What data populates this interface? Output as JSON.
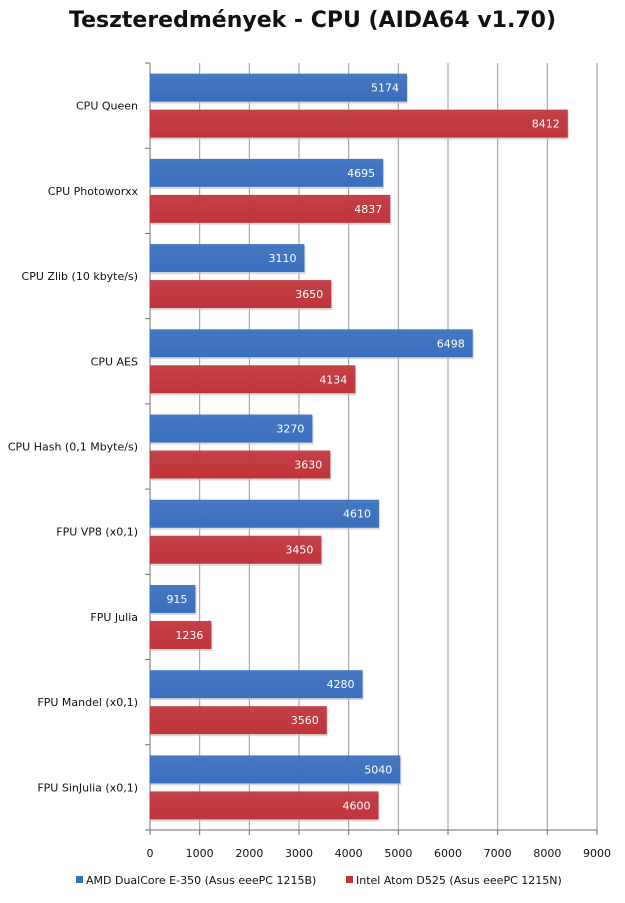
{
  "chart_data": {
    "type": "bar",
    "orientation": "horizontal",
    "title": "Teszteredmények - CPU (AIDA64 v1.70)",
    "xlabel": "",
    "ylabel": "",
    "categories": [
      "CPU Queen",
      "CPU Photoworxx",
      "CPU Zlib (10 kbyte/s)",
      "CPU AES",
      "CPU Hash (0,1 Mbyte/s)",
      "FPU VP8 (x0,1)",
      "FPU Julia",
      "FPU Mandel (x0,1)",
      "FPU SinJulia (x0,1)"
    ],
    "series": [
      {
        "name": "AMD DualCore E-350 (Asus eeePC 1215B)",
        "color": "#3a6fbf",
        "values": [
          5174,
          4695,
          3110,
          6498,
          3270,
          4610,
          915,
          4280,
          5040
        ]
      },
      {
        "name": "Intel Atom D525 (Asus eeePC 1215N)",
        "color": "#c0343a",
        "values": [
          8412,
          4837,
          3650,
          4134,
          3630,
          3450,
          1236,
          3560,
          4600
        ]
      }
    ],
    "xlim": [
      0,
      9000
    ],
    "xticks": [
      0,
      1000,
      2000,
      3000,
      4000,
      5000,
      6000,
      7000,
      8000,
      9000
    ],
    "grid": true,
    "legend_position": "bottom"
  }
}
